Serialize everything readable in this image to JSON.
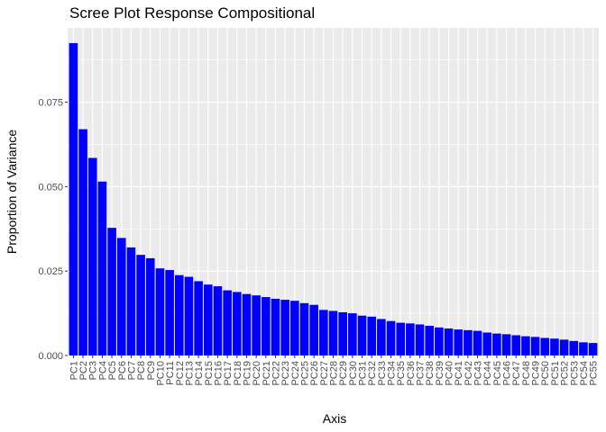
{
  "chart_data": {
    "type": "bar",
    "title": "Scree Plot Response Compositional",
    "xlabel": "Axis",
    "ylabel": "Proportion of Variance",
    "categories": [
      "PC1",
      "PC2",
      "PC3",
      "PC4",
      "PC5",
      "PC6",
      "PC7",
      "PC8",
      "PC9",
      "PC10",
      "PC11",
      "PC12",
      "PC13",
      "PC14",
      "PC15",
      "PC16",
      "PC17",
      "PC18",
      "PC19",
      "PC20",
      "PC21",
      "PC22",
      "PC23",
      "PC24",
      "PC25",
      "PC26",
      "PC27",
      "PC28",
      "PC29",
      "PC30",
      "PC31",
      "PC32",
      "PC33",
      "PC34",
      "PC35",
      "PC36",
      "PC37",
      "PC38",
      "PC39",
      "PC40",
      "PC41",
      "PC42",
      "PC43",
      "PC44",
      "PC45",
      "PC46",
      "PC47",
      "PC48",
      "PC49",
      "PC50",
      "PC51",
      "PC52",
      "PC53",
      "PC54",
      "PC55"
    ],
    "values": [
      0.0925,
      0.067,
      0.0585,
      0.0515,
      0.0378,
      0.0348,
      0.032,
      0.0298,
      0.0288,
      0.0258,
      0.0253,
      0.0238,
      0.0233,
      0.022,
      0.021,
      0.0205,
      0.0193,
      0.0188,
      0.0182,
      0.0178,
      0.0173,
      0.0168,
      0.0165,
      0.0162,
      0.0155,
      0.015,
      0.0135,
      0.0132,
      0.0128,
      0.0125,
      0.0118,
      0.0115,
      0.0108,
      0.0102,
      0.0097,
      0.0095,
      0.0092,
      0.0088,
      0.0083,
      0.008,
      0.0077,
      0.0075,
      0.0073,
      0.0068,
      0.0065,
      0.0063,
      0.006,
      0.0057,
      0.0055,
      0.0052,
      0.005,
      0.0047,
      0.0043,
      0.0039,
      0.0037
    ],
    "yticks": [
      "0.000",
      "0.025",
      "0.050",
      "0.075"
    ],
    "ylim": [
      0,
      0.097
    ],
    "grid": true,
    "legend": "none",
    "bar_color": "#0000ff",
    "panel_color": "#ebebeb",
    "grid_color": "#ffffff"
  }
}
